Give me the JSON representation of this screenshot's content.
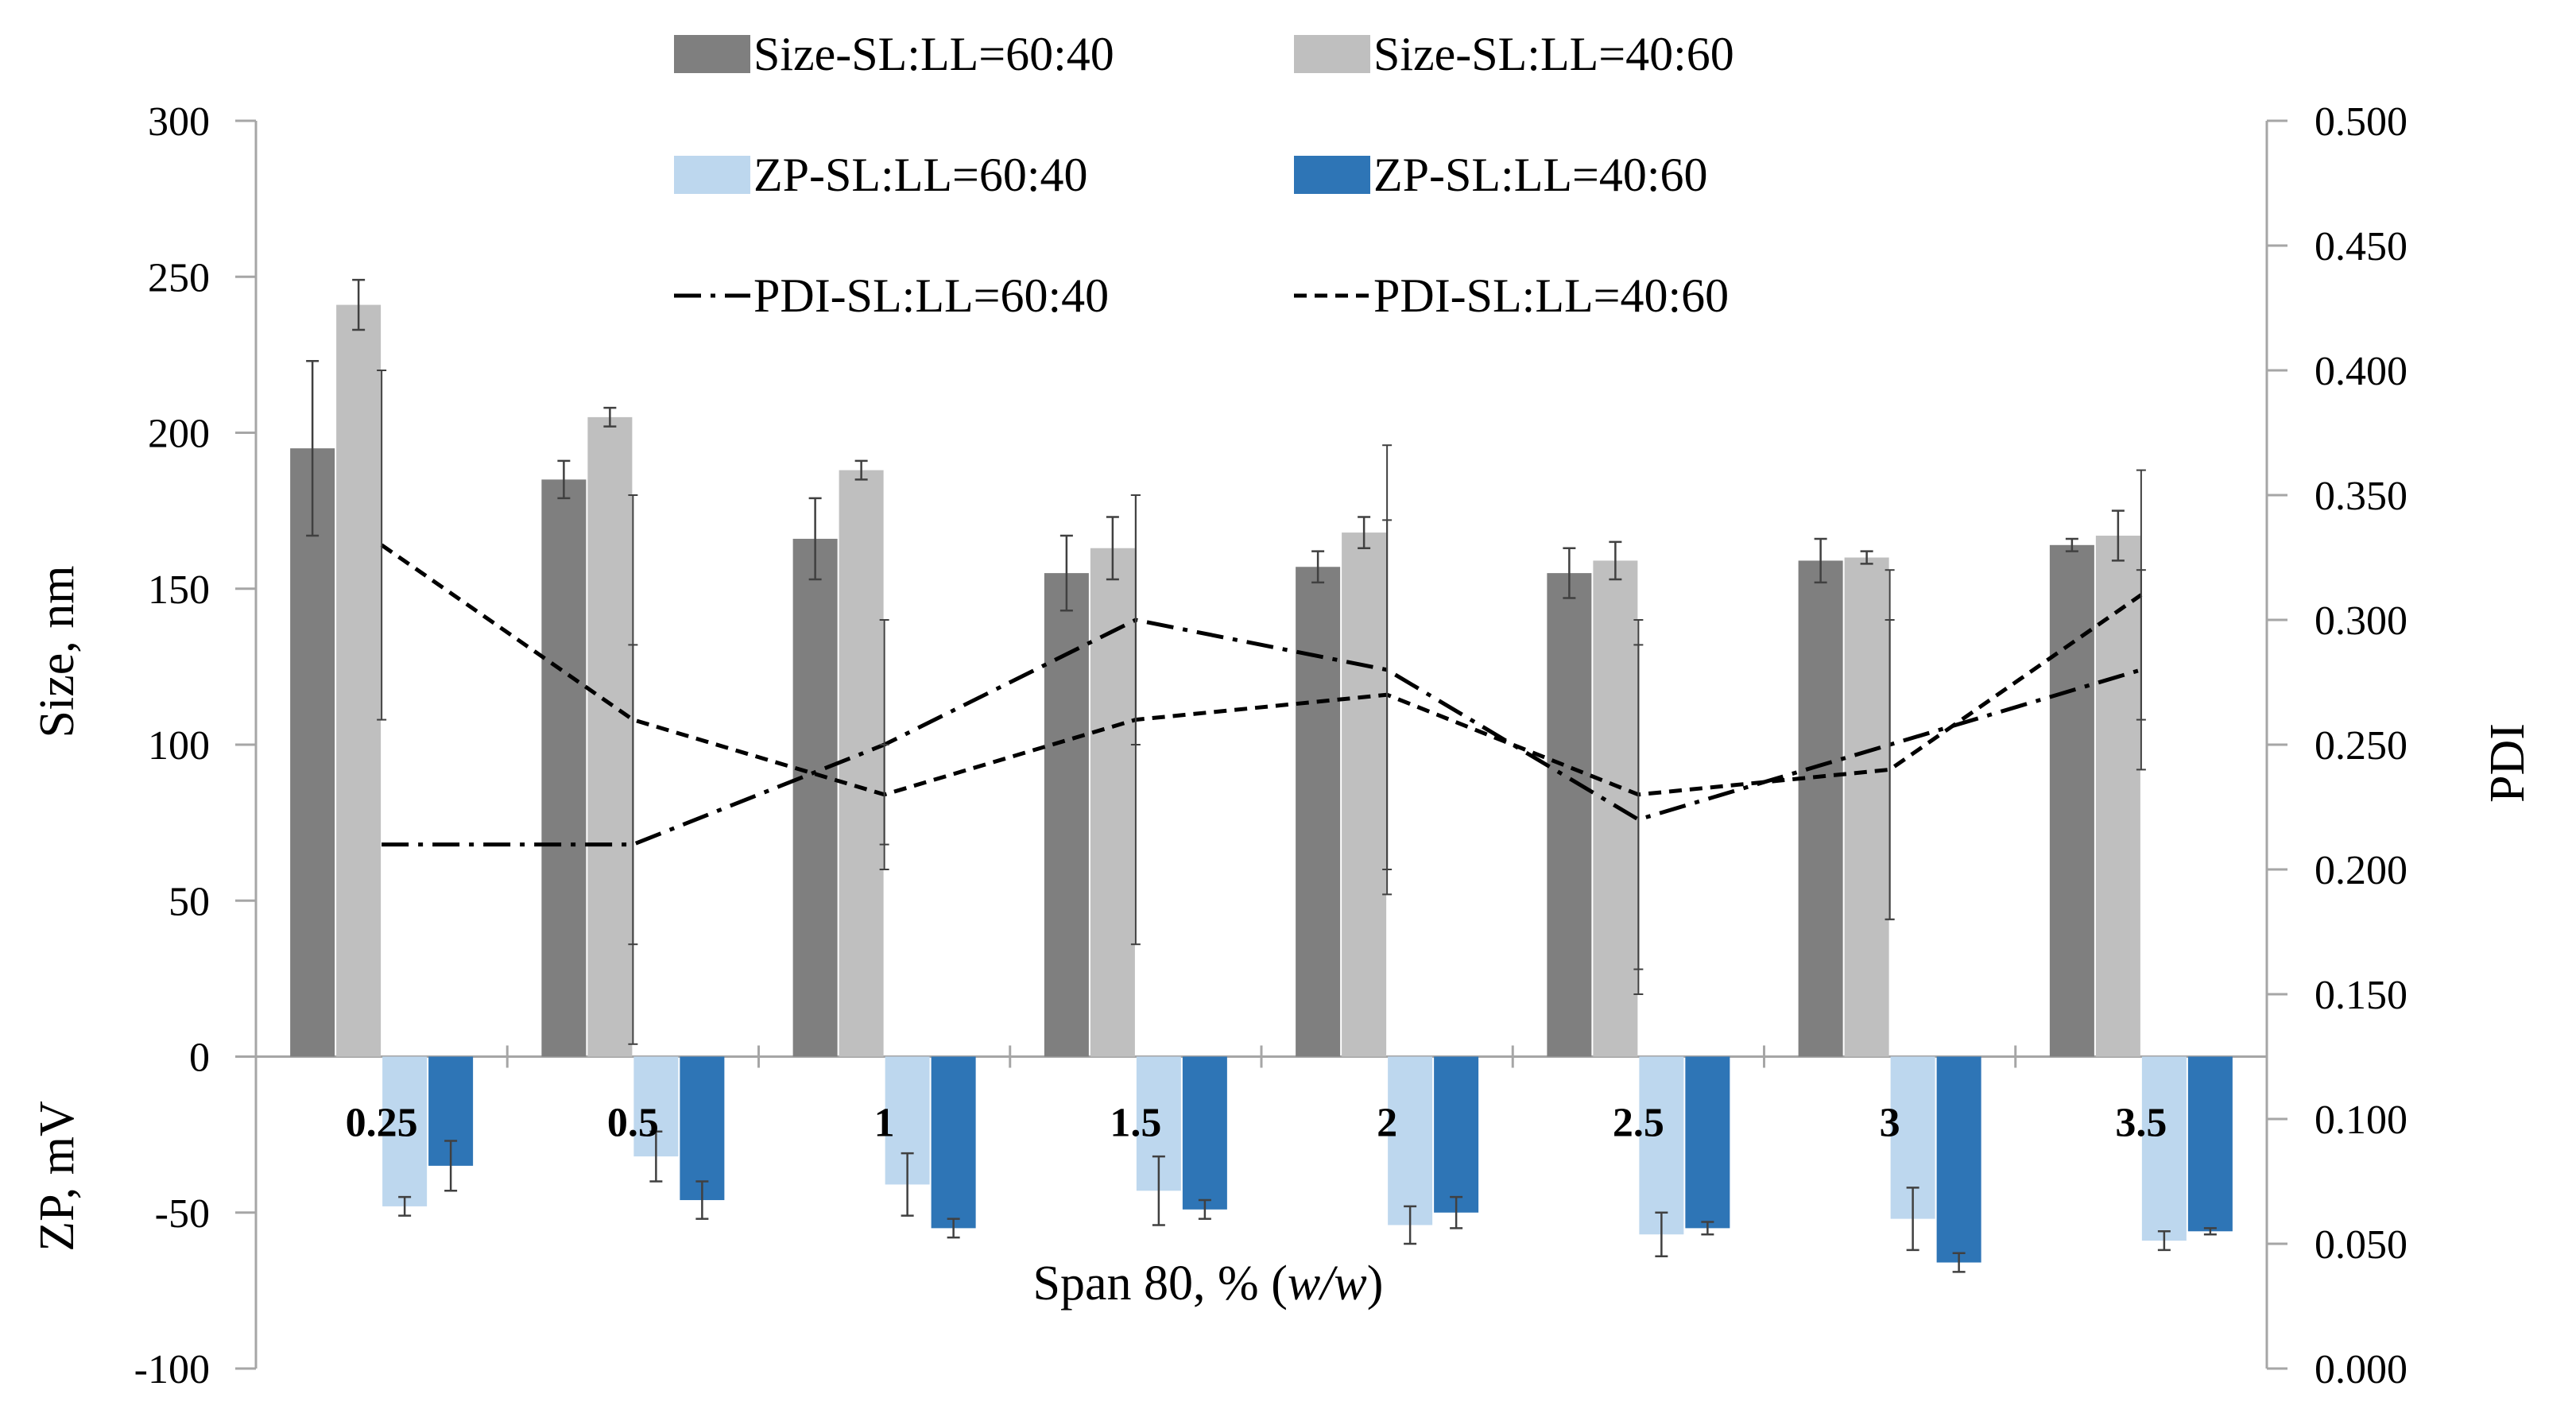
{
  "chart_data": {
    "type": "bar",
    "title": "",
    "xlabel": "Span 80, % (",
    "xlabel_italic": "w/w",
    "xlabel_end": ")",
    "ylabel_left_top": "Size, nm",
    "ylabel_left_bottom": "ZP, mV",
    "ylabel_right": "PDI",
    "ylim_left": [
      -100,
      300
    ],
    "ylim_right": [
      0.0,
      0.5
    ],
    "left_ticks": [
      "300",
      "250",
      "200",
      "150",
      "100",
      "50",
      "0",
      "-50",
      "-100"
    ],
    "right_ticks": [
      "0.500",
      "0.450",
      "0.400",
      "0.350",
      "0.300",
      "0.250",
      "0.200",
      "0.150",
      "0.100",
      "0.050",
      "0.000"
    ],
    "categories": [
      "0.25",
      "0.5",
      "1",
      "1.5",
      "2",
      "2.5",
      "3",
      "3.5"
    ],
    "bar_series": [
      {
        "name": "Size-SL:LL=60:40",
        "color": "#7f7f7f",
        "values": [
          195,
          185,
          166,
          155,
          157,
          155,
          159,
          164
        ],
        "errors": [
          28,
          6,
          13,
          12,
          5,
          8,
          7,
          2
        ]
      },
      {
        "name": "Size-SL:LL=40:60",
        "color": "#bfbfbf",
        "values": [
          241,
          205,
          188,
          163,
          168,
          159,
          160,
          167
        ],
        "errors": [
          8,
          3,
          3,
          10,
          5,
          6,
          2,
          8
        ]
      },
      {
        "name": "ZP-SL:LL=60:40",
        "color": "#bdd7ee",
        "values": [
          -48,
          -32,
          -41,
          -43,
          -54,
          -57,
          -52,
          -59
        ],
        "errors": [
          3,
          8,
          10,
          11,
          6,
          7,
          10,
          3
        ]
      },
      {
        "name": "ZP-SL:LL=40:60",
        "color": "#2e75b6",
        "values": [
          -35,
          -46,
          -55,
          -49,
          -50,
          -55,
          -66,
          -56
        ],
        "errors": [
          8,
          6,
          3,
          3,
          5,
          2,
          3,
          1
        ]
      }
    ],
    "line_series": [
      {
        "name": "PDI-SL:LL=60:40",
        "dash": "dashdot",
        "values": [
          0.21,
          0.21,
          0.25,
          0.3,
          0.28,
          0.22,
          0.25,
          0.28
        ],
        "errors": [
          0,
          0.08,
          0.05,
          0.05,
          0.09,
          0.07,
          0.07,
          0.04
        ]
      },
      {
        "name": "PDI-SL:LL=40:60",
        "dash": "dashed",
        "values": [
          0.33,
          0.26,
          0.23,
          0.26,
          0.27,
          0.23,
          0.24,
          0.31
        ],
        "errors": [
          0.07,
          0.09,
          0.02,
          0.09,
          0.07,
          0.07,
          0.06,
          0.05
        ]
      }
    ],
    "legend": {
      "position": "top",
      "entries": [
        "Size-SL:LL=60:40",
        "Size-SL:LL=40:60",
        "ZP-SL:LL=60:40",
        "ZP-SL:LL=40:60",
        "PDI-SL:LL=60:40",
        "PDI-SL:LL=40:60"
      ]
    },
    "grid": false
  }
}
